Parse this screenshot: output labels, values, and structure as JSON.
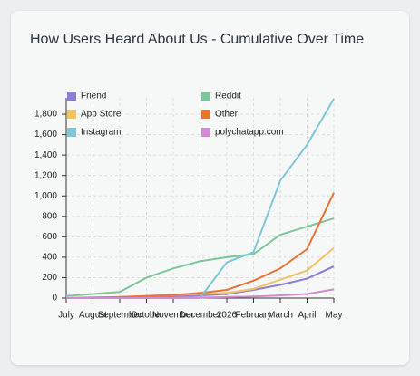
{
  "chart_data": {
    "type": "line",
    "title": "How Users Heard About Us - Cumulative Over Time",
    "categories": [
      "July",
      "August",
      "September",
      "October",
      "November",
      "December",
      "2026",
      "February",
      "March",
      "April",
      "May"
    ],
    "series": [
      {
        "name": "Friend",
        "color": "#8a80d6",
        "values": [
          0,
          0,
          5,
          10,
          15,
          25,
          40,
          80,
          130,
          190,
          310
        ]
      },
      {
        "name": "Reddit",
        "color": "#7cc79a",
        "values": [
          20,
          40,
          60,
          200,
          290,
          360,
          400,
          430,
          620,
          700,
          780
        ]
      },
      {
        "name": "App Store",
        "color": "#f2c265",
        "values": [
          0,
          5,
          10,
          20,
          30,
          40,
          50,
          90,
          180,
          270,
          490
        ]
      },
      {
        "name": "Other",
        "color": "#eb7231",
        "values": [
          0,
          5,
          10,
          20,
          30,
          50,
          80,
          170,
          290,
          480,
          1030
        ]
      },
      {
        "name": "Instagram",
        "color": "#7ec7d9",
        "values": [
          0,
          0,
          0,
          0,
          0,
          0,
          350,
          450,
          1150,
          1500,
          1950
        ]
      },
      {
        "name": "polychatapp.com",
        "color": "#d38ad3",
        "values": [
          0,
          0,
          0,
          0,
          2,
          5,
          10,
          15,
          25,
          40,
          85
        ]
      }
    ],
    "ylim": [
      0,
      1960
    ],
    "yticks": [
      0,
      200,
      400,
      600,
      800,
      {
        "value": 1000,
        "label": "1,000"
      },
      {
        "value": 1200,
        "label": "1,200"
      },
      {
        "value": 1400,
        "label": "1,400"
      },
      {
        "value": 1600,
        "label": "1,600"
      },
      {
        "value": 1800,
        "label": "1,800"
      }
    ],
    "grid": true,
    "legend": "top-left"
  }
}
